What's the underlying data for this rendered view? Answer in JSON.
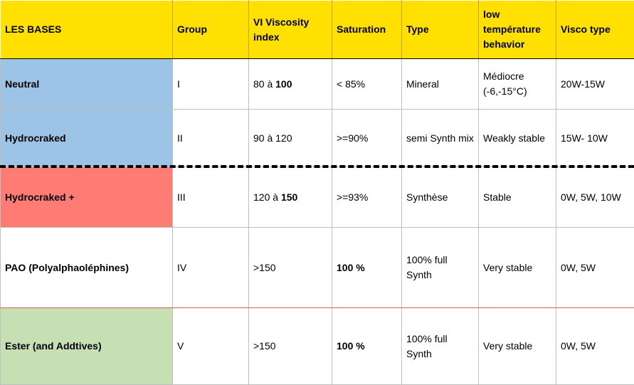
{
  "headers": [
    "LES BASES",
    "Group",
    "VI Viscosity index",
    "Saturation",
    "Type",
    "low température behavior",
    "Visco type"
  ],
  "rows": [
    {
      "base": "Neutral",
      "group": "I",
      "vi_pre": "80 à ",
      "vi_bold": "100",
      "saturation": "< 85%",
      "type": "Mineral",
      "low_temp": "Médiocre (-6,-15°C)",
      "visco": "20W-15W"
    },
    {
      "base": "Hydrocraked",
      "group": "II",
      "vi_pre": "90 à 120",
      "vi_bold": "",
      "saturation": ">=90%",
      "type": "semi Synth mix",
      "low_temp": "Weakly stable",
      "visco": "15W- 10W"
    },
    {
      "base": "Hydrocraked +",
      "group": "III",
      "vi_pre": "120 à ",
      "vi_bold": "150",
      "saturation": ">=93%",
      "type": "Synthèse",
      "low_temp": "Stable",
      "visco": "0W, 5W, 10W"
    },
    {
      "base": "PAO (Polyalphaoléphines)",
      "group": "IV",
      "vi_pre": ">150",
      "vi_bold": "",
      "saturation": "100 %",
      "type": "100% full Synth",
      "low_temp": "Very stable",
      "visco": "0W, 5W"
    },
    {
      "base": "Ester (and Addtives)",
      "group": "V",
      "vi_pre": ">150",
      "vi_bold": "",
      "saturation": "100 %",
      "type": "100% full Synth",
      "low_temp": "Very stable",
      "visco": "0W, 5W"
    }
  ],
  "colors": {
    "header": "#ffe000",
    "neutral": "#9dc3e6",
    "hydrocraked_plus": "#ff7c75",
    "ester": "#c6e0b4"
  }
}
